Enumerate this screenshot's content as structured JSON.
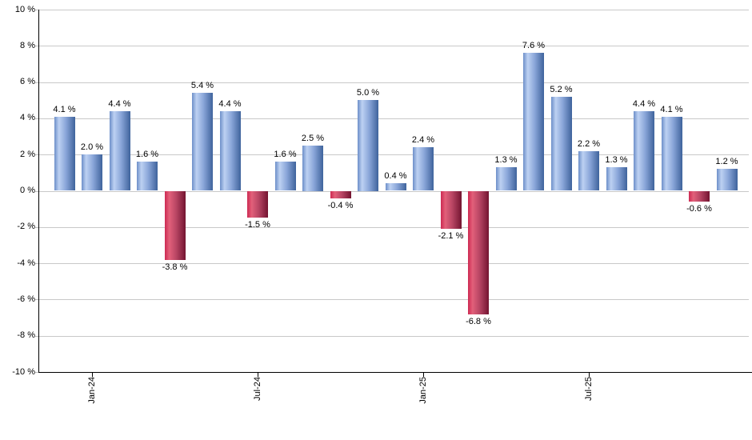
{
  "chart_data": {
    "type": "bar",
    "title": "",
    "xlabel": "",
    "ylabel": "",
    "unit": "%",
    "ylim": [
      -10,
      10
    ],
    "ytick_step": 2,
    "grid": true,
    "legend": false,
    "ytick_values": [
      10,
      8,
      6,
      4,
      2,
      0,
      -2,
      -4,
      -6,
      -8,
      -10
    ],
    "ytick_labels": [
      "10 %",
      "8 %",
      "6 %",
      "4 %",
      "2 %",
      "0 %",
      "-2 %",
      "-4 %",
      "-6 %",
      "-8 %",
      "-10 %"
    ],
    "values": [
      4.1,
      2.0,
      4.4,
      1.6,
      -3.8,
      5.4,
      4.4,
      -1.5,
      1.6,
      2.5,
      -0.4,
      5.0,
      0.4,
      2.4,
      -2.1,
      -6.8,
      1.3,
      7.6,
      5.2,
      2.2,
      1.3,
      4.4,
      4.1,
      -0.6,
      1.2
    ],
    "bar_value_labels": [
      "4.1 %",
      "2.0 %",
      "4.4 %",
      "1.6 %",
      "-3.8 %",
      "5.4 %",
      "4.4 %",
      "-1.5 %",
      "1.6 %",
      "2.5 %",
      "-0.4 %",
      "5.0 %",
      "0.4 %",
      "2.4 %",
      "-2.1 %",
      "-6.8 %",
      "1.3 %",
      "7.6 %",
      "5.2 %",
      "2.2 %",
      "1.3 %",
      "4.4 %",
      "4.1 %",
      "-0.6 %",
      "1.2 %"
    ],
    "x_tick_labels": [
      "Jan-24",
      "Jul-24",
      "Jan-25",
      "Jul-25"
    ],
    "x_tick_bar_indices": [
      1,
      7,
      13,
      19
    ],
    "colors": {
      "positive_bar_left": "#6d8fc9",
      "positive_bar_light": "#bdd1f2",
      "positive_bar_mid": "#8aa6d9",
      "positive_bar_right": "#3f639c",
      "negative_bar_left": "#cd2a52",
      "negative_bar_light": "#e2607a",
      "negative_bar_mid": "#b84564",
      "negative_bar_right": "#731430",
      "gridline": "#c9c9c9",
      "axis": "#000000",
      "text": "#000000",
      "background": "#ffffff"
    }
  }
}
